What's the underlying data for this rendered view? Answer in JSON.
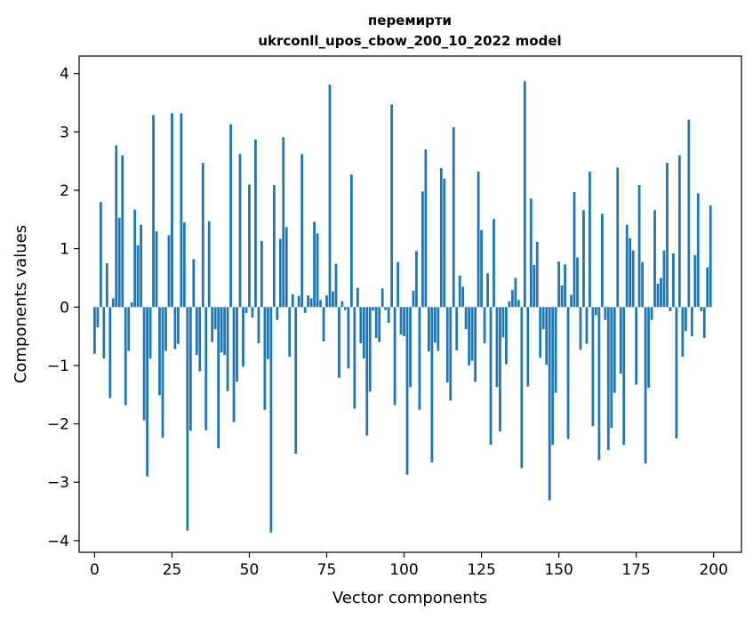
{
  "chart_data": {
    "type": "bar",
    "title": "перемирти",
    "subtitle": "ukrconll_upos_cbow_200_10_2022 model",
    "xlabel": "Vector components",
    "ylabel": "Components values",
    "xlim": [
      -5,
      209
    ],
    "ylim": [
      -4.2,
      4.3
    ],
    "x_ticks": [
      0,
      25,
      50,
      75,
      100,
      125,
      150,
      175,
      200
    ],
    "y_ticks": [
      -4,
      -3,
      -2,
      -1,
      0,
      1,
      2,
      3,
      4
    ],
    "x_tick_labels": [
      "0",
      "25",
      "50",
      "75",
      "100",
      "125",
      "150",
      "175",
      "200"
    ],
    "y_tick_labels": [
      "−4",
      "−3",
      "−2",
      "−1",
      "0",
      "1",
      "2",
      "3",
      "4"
    ],
    "bar_color": "#1f77b4",
    "grid": false,
    "x": [
      0,
      1,
      2,
      3,
      4,
      5,
      6,
      7,
      8,
      9,
      10,
      11,
      12,
      13,
      14,
      15,
      16,
      17,
      18,
      19,
      20,
      21,
      22,
      23,
      24,
      25,
      26,
      27,
      28,
      29,
      30,
      31,
      32,
      33,
      34,
      35,
      36,
      37,
      38,
      39,
      40,
      41,
      42,
      43,
      44,
      45,
      46,
      47,
      48,
      49,
      50,
      51,
      52,
      53,
      54,
      55,
      56,
      57,
      58,
      59,
      60,
      61,
      62,
      63,
      64,
      65,
      66,
      67,
      68,
      69,
      70,
      71,
      72,
      73,
      74,
      75,
      76,
      77,
      78,
      79,
      80,
      81,
      82,
      83,
      84,
      85,
      86,
      87,
      88,
      89,
      90,
      91,
      92,
      93,
      94,
      95,
      96,
      97,
      98,
      99,
      100,
      101,
      102,
      103,
      104,
      105,
      106,
      107,
      108,
      109,
      110,
      111,
      112,
      113,
      114,
      115,
      116,
      117,
      118,
      119,
      120,
      121,
      122,
      123,
      124,
      125,
      126,
      127,
      128,
      129,
      130,
      131,
      132,
      133,
      134,
      135,
      136,
      137,
      138,
      139,
      140,
      141,
      142,
      143,
      144,
      145,
      146,
      147,
      148,
      149,
      150,
      151,
      152,
      153,
      154,
      155,
      156,
      157,
      158,
      159,
      160,
      161,
      162,
      163,
      164,
      165,
      166,
      167,
      168,
      169,
      170,
      171,
      172,
      173,
      174,
      175,
      176,
      177,
      178,
      179,
      180,
      181,
      182,
      183,
      184,
      185,
      186,
      187,
      188,
      189,
      190,
      191,
      192,
      193,
      194,
      195,
      196,
      197,
      198,
      199
    ],
    "values": [
      -0.8,
      -0.35,
      1.8,
      -0.88,
      0.75,
      -1.56,
      0.15,
      2.77,
      1.53,
      2.6,
      -1.68,
      -0.75,
      0.08,
      1.67,
      1.06,
      1.41,
      -1.94,
      -2.9,
      -0.88,
      3.29,
      1.3,
      -1.51,
      -2.24,
      -0.75,
      1.23,
      3.32,
      -0.72,
      -0.63,
      3.32,
      1.45,
      -3.83,
      -2.12,
      0.82,
      -0.82,
      -1.1,
      2.47,
      -2.11,
      1.47,
      -0.6,
      -0.38,
      -2.42,
      -0.78,
      -0.82,
      -1.44,
      3.13,
      -1.97,
      -1.28,
      2.62,
      -1.02,
      -0.1,
      2.1,
      -0.18,
      2.87,
      -0.62,
      1.13,
      -1.76,
      -0.89,
      -3.86,
      2.09,
      -0.22,
      1.17,
      2.91,
      1.37,
      -0.85,
      0.22,
      -2.51,
      0.19,
      2.62,
      -0.1,
      0.2,
      0.15,
      1.46,
      1.26,
      0.12,
      -0.59,
      0.2,
      3.81,
      0.27,
      0.74,
      -1.21,
      0.1,
      -0.05,
      -1.05,
      2.27,
      -1.74,
      0.33,
      -0.62,
      -0.88,
      -2.2,
      -1.45,
      -0.06,
      -0.53,
      -0.6,
      0.32,
      -0.05,
      -0.27,
      3.47,
      -1.68,
      0.77,
      -0.47,
      -0.5,
      -2.87,
      -1.37,
      0.28,
      0.96,
      -1.76,
      1.98,
      2.7,
      -0.76,
      -2.66,
      -0.61,
      -0.75,
      2.38,
      2.2,
      -1.29,
      -1.6,
      3.08,
      -0.74,
      0.54,
      0.35,
      -0.38,
      -1.0,
      -0.92,
      -1.28,
      2.32,
      1.32,
      -0.62,
      0.58,
      -2.36,
      1.51,
      -1.37,
      -2.13,
      -0.52,
      -0.98,
      0.1,
      0.29,
      0.5,
      0.12,
      -2.76,
      3.87,
      -1.36,
      1.86,
      0.72,
      1.12,
      -0.87,
      -0.38,
      -0.99,
      -3.31,
      -2.36,
      -1.47,
      0.78,
      0.37,
      0.73,
      -2.26,
      0.21,
      1.97,
      0.85,
      -0.73,
      1.66,
      -0.63,
      2.32,
      -2.04,
      -0.14,
      -2.62,
      1.6,
      -0.22,
      -2.45,
      -2.07,
      -1.47,
      2.39,
      -1.14,
      -2.36,
      1.41,
      1.18,
      0.97,
      -1.33,
      2.09,
      0.77,
      -2.68,
      -1.38,
      -0.22,
      1.66,
      0.4,
      0.5,
      0.97,
      2.47,
      -0.07,
      0.92,
      -2.25,
      2.6,
      -0.85,
      -0.41,
      3.21,
      -0.5,
      0.89,
      1.95,
      -0.07,
      -0.53,
      0.68,
      1.74
    ]
  }
}
